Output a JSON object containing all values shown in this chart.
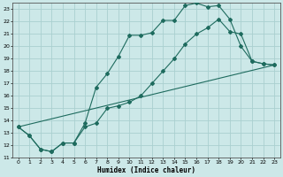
{
  "xlabel": "Humidex (Indice chaleur)",
  "background_color": "#cce8e8",
  "grid_color": "#aad0d0",
  "line_color": "#1e6b5e",
  "xlim": [
    -0.5,
    23.5
  ],
  "ylim": [
    11,
    23.5
  ],
  "yticks": [
    11,
    12,
    13,
    14,
    15,
    16,
    17,
    18,
    19,
    20,
    21,
    22,
    23
  ],
  "xticks": [
    0,
    1,
    2,
    3,
    4,
    5,
    6,
    7,
    8,
    9,
    10,
    11,
    12,
    13,
    14,
    15,
    16,
    17,
    18,
    19,
    20,
    21,
    22,
    23
  ],
  "line1_x": [
    0,
    1,
    2,
    3,
    4,
    5,
    6,
    7,
    8,
    9,
    10,
    11,
    12,
    13,
    14,
    15,
    16,
    17,
    18,
    19,
    20,
    21,
    22,
    23
  ],
  "line1_y": [
    13.5,
    12.8,
    11.7,
    11.5,
    12.2,
    12.2,
    13.8,
    16.7,
    17.8,
    19.2,
    20.9,
    20.9,
    21.1,
    22.1,
    22.1,
    23.3,
    23.5,
    23.2,
    23.3,
    22.2,
    20.0,
    18.8,
    18.6,
    18.5
  ],
  "line2_x": [
    0,
    1,
    2,
    3,
    4,
    5,
    6,
    7,
    8,
    9,
    10,
    11,
    12,
    13,
    14,
    15,
    16,
    17,
    18,
    19,
    20,
    21,
    22,
    23
  ],
  "line2_y": [
    13.5,
    12.8,
    11.7,
    11.5,
    12.2,
    12.2,
    13.5,
    13.8,
    15.0,
    15.2,
    15.5,
    16.0,
    17.0,
    18.0,
    19.0,
    20.2,
    21.0,
    21.5,
    22.2,
    21.2,
    21.0,
    18.8,
    18.6,
    18.5
  ],
  "line3_x": [
    0,
    23
  ],
  "line3_y": [
    13.5,
    18.5
  ]
}
